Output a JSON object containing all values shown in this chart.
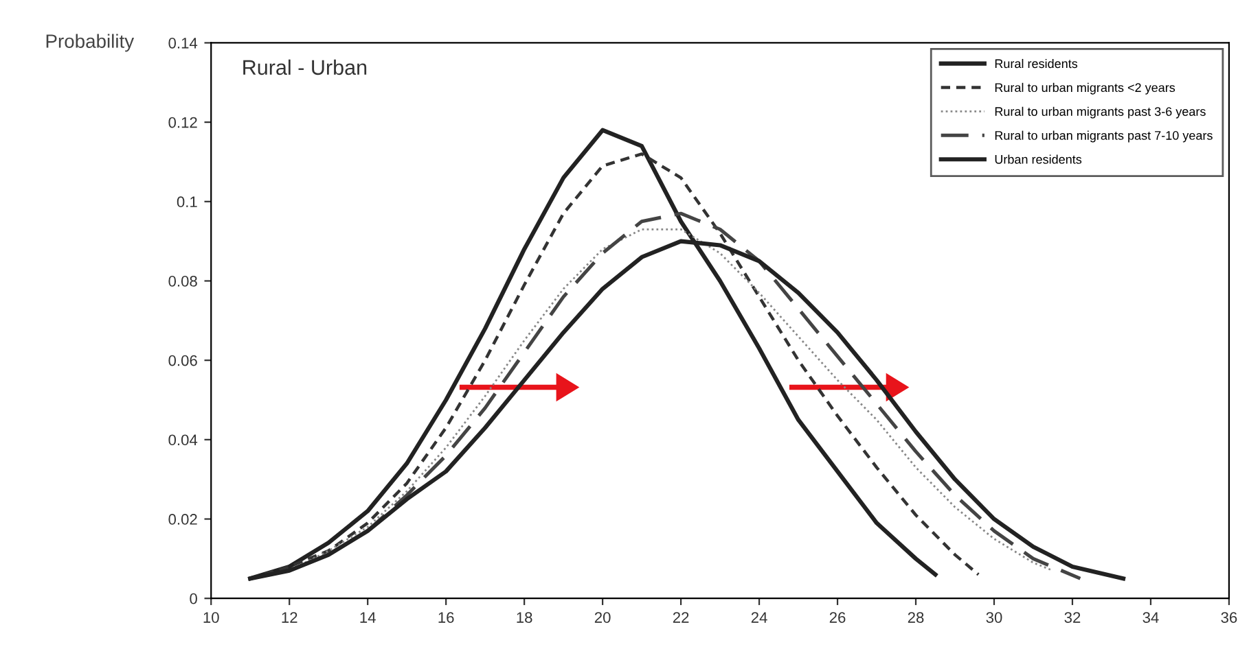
{
  "chart_data": {
    "type": "line",
    "title": "Rural - Urban",
    "ylabel": "Probability",
    "xlim": [
      10,
      36
    ],
    "xticks": [
      10,
      12,
      14,
      16,
      18,
      20,
      22,
      24,
      26,
      28,
      30,
      32,
      34,
      36
    ],
    "ylim": [
      0,
      0.14
    ],
    "yticks": [
      0,
      0.02,
      0.04,
      0.06,
      0.08,
      0.1,
      0.12,
      0.14
    ],
    "grid": false,
    "legend": "top right",
    "marker": "none",
    "series": [
      {
        "name": "Rural residents",
        "color": "#222222",
        "line_style": "solid",
        "x": [
          11,
          12,
          13,
          14,
          15,
          16,
          17,
          18,
          19,
          20,
          21,
          22,
          23,
          24,
          25,
          26,
          27,
          28,
          28.5
        ],
        "values": [
          0.005,
          0.008,
          0.014,
          0.022,
          0.034,
          0.05,
          0.068,
          0.088,
          0.106,
          0.118,
          0.114,
          0.095,
          0.08,
          0.063,
          0.045,
          0.032,
          0.019,
          0.01,
          0.006
        ]
      },
      {
        "name": "Rural to urban migrants <2 years",
        "color": "#333333",
        "line_style": "dashed",
        "x": [
          11,
          12,
          13,
          14,
          15,
          16,
          17,
          18,
          19,
          20,
          21,
          22,
          23,
          24,
          25,
          26,
          27,
          28,
          29,
          29.6
        ],
        "values": [
          0.005,
          0.008,
          0.012,
          0.019,
          0.029,
          0.043,
          0.06,
          0.079,
          0.097,
          0.109,
          0.112,
          0.106,
          0.092,
          0.076,
          0.06,
          0.046,
          0.033,
          0.021,
          0.011,
          0.006
        ]
      },
      {
        "name": "Rural to urban migrants past 3-6 years",
        "color": "#888888",
        "line_style": "dotted",
        "x": [
          11,
          12,
          13,
          14,
          15,
          16,
          17,
          18,
          19,
          20,
          21,
          22,
          23,
          24,
          25,
          26,
          27,
          28,
          29,
          30,
          31,
          31.5
        ],
        "values": [
          0.005,
          0.007,
          0.012,
          0.018,
          0.027,
          0.038,
          0.051,
          0.065,
          0.078,
          0.088,
          0.093,
          0.093,
          0.087,
          0.077,
          0.066,
          0.055,
          0.045,
          0.033,
          0.023,
          0.015,
          0.009,
          0.007
        ]
      },
      {
        "name": "Rural to urban migrants past 7-10 years",
        "color": "#444444",
        "line_style": "longdash",
        "x": [
          11,
          12,
          13,
          14,
          15,
          16,
          17,
          18,
          19,
          20,
          21,
          22,
          23,
          24,
          25,
          26,
          27,
          28,
          29,
          30,
          31,
          32.2
        ],
        "values": [
          0.005,
          0.007,
          0.011,
          0.017,
          0.026,
          0.036,
          0.048,
          0.062,
          0.076,
          0.087,
          0.095,
          0.097,
          0.093,
          0.085,
          0.073,
          0.061,
          0.049,
          0.037,
          0.026,
          0.017,
          0.01,
          0.005
        ]
      },
      {
        "name": "Urban residents",
        "color": "#222222",
        "line_style": "solid",
        "x": [
          11,
          12,
          13,
          14,
          15,
          16,
          17,
          18,
          19,
          20,
          21,
          22,
          23,
          24,
          25,
          26,
          27,
          28,
          29,
          30,
          31,
          32,
          33.3
        ],
        "values": [
          0.005,
          0.007,
          0.011,
          0.017,
          0.025,
          0.032,
          0.043,
          0.055,
          0.067,
          0.078,
          0.086,
          0.09,
          0.089,
          0.085,
          0.077,
          0.067,
          0.055,
          0.042,
          0.03,
          0.02,
          0.013,
          0.008,
          0.005
        ]
      }
    ]
  }
}
